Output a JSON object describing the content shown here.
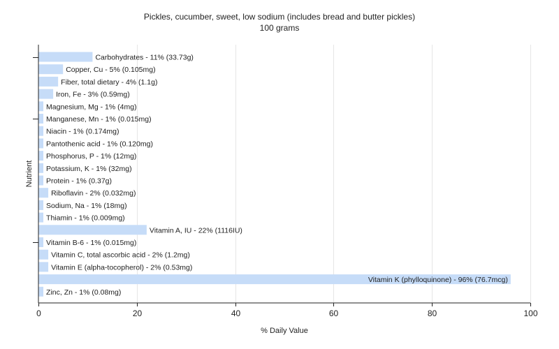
{
  "chart_data": {
    "type": "bar",
    "orientation": "horizontal",
    "title": "Pickles, cucumber, sweet, low sodium (includes bread and butter pickles)",
    "subtitle": "100 grams",
    "xlabel": "% Daily Value",
    "ylabel": "Nutrient",
    "xlim": [
      0,
      100
    ],
    "xticks": [
      "0",
      "20",
      "40",
      "60",
      "80",
      "100"
    ],
    "grid": true,
    "bar_color": "#c6dcf8",
    "categories": [
      "Carbohydrates",
      "Copper, Cu",
      "Fiber, total dietary",
      "Iron, Fe",
      "Magnesium, Mg",
      "Manganese, Mn",
      "Niacin",
      "Pantothenic acid",
      "Phosphorus, P",
      "Potassium, K",
      "Protein",
      "Riboflavin",
      "Sodium, Na",
      "Thiamin",
      "Vitamin A, IU",
      "Vitamin B-6",
      "Vitamin C, total ascorbic acid",
      "Vitamin E (alpha-tocopherol)",
      "Vitamin K (phylloquinone)",
      "Zinc, Zn"
    ],
    "values": [
      11,
      5,
      4,
      3,
      1,
      1,
      1,
      1,
      1,
      1,
      1,
      2,
      1,
      1,
      22,
      1,
      2,
      2,
      96,
      1
    ],
    "labels": [
      "Carbohydrates - 11% (33.73g)",
      "Copper, Cu - 5% (0.105mg)",
      "Fiber, total dietary - 4% (1.1g)",
      "Iron, Fe - 3% (0.59mg)",
      "Magnesium, Mg - 1% (4mg)",
      "Manganese, Mn - 1% (0.015mg)",
      "Niacin - 1% (0.174mg)",
      "Pantothenic acid - 1% (0.120mg)",
      "Phosphorus, P - 1% (12mg)",
      "Potassium, K - 1% (32mg)",
      "Protein - 1% (0.37g)",
      "Riboflavin - 2% (0.032mg)",
      "Sodium, Na - 1% (18mg)",
      "Thiamin - 1% (0.009mg)",
      "Vitamin A, IU - 22% (1116IU)",
      "Vitamin B-6 - 1% (0.015mg)",
      "Vitamin C, total ascorbic acid - 2% (1.2mg)",
      "Vitamin E (alpha-tocopherol) - 2% (0.53mg)",
      "Vitamin K (phylloquinone) - 96% (76.7mcg)",
      "Zinc, Zn - 1% (0.08mg)"
    ]
  }
}
